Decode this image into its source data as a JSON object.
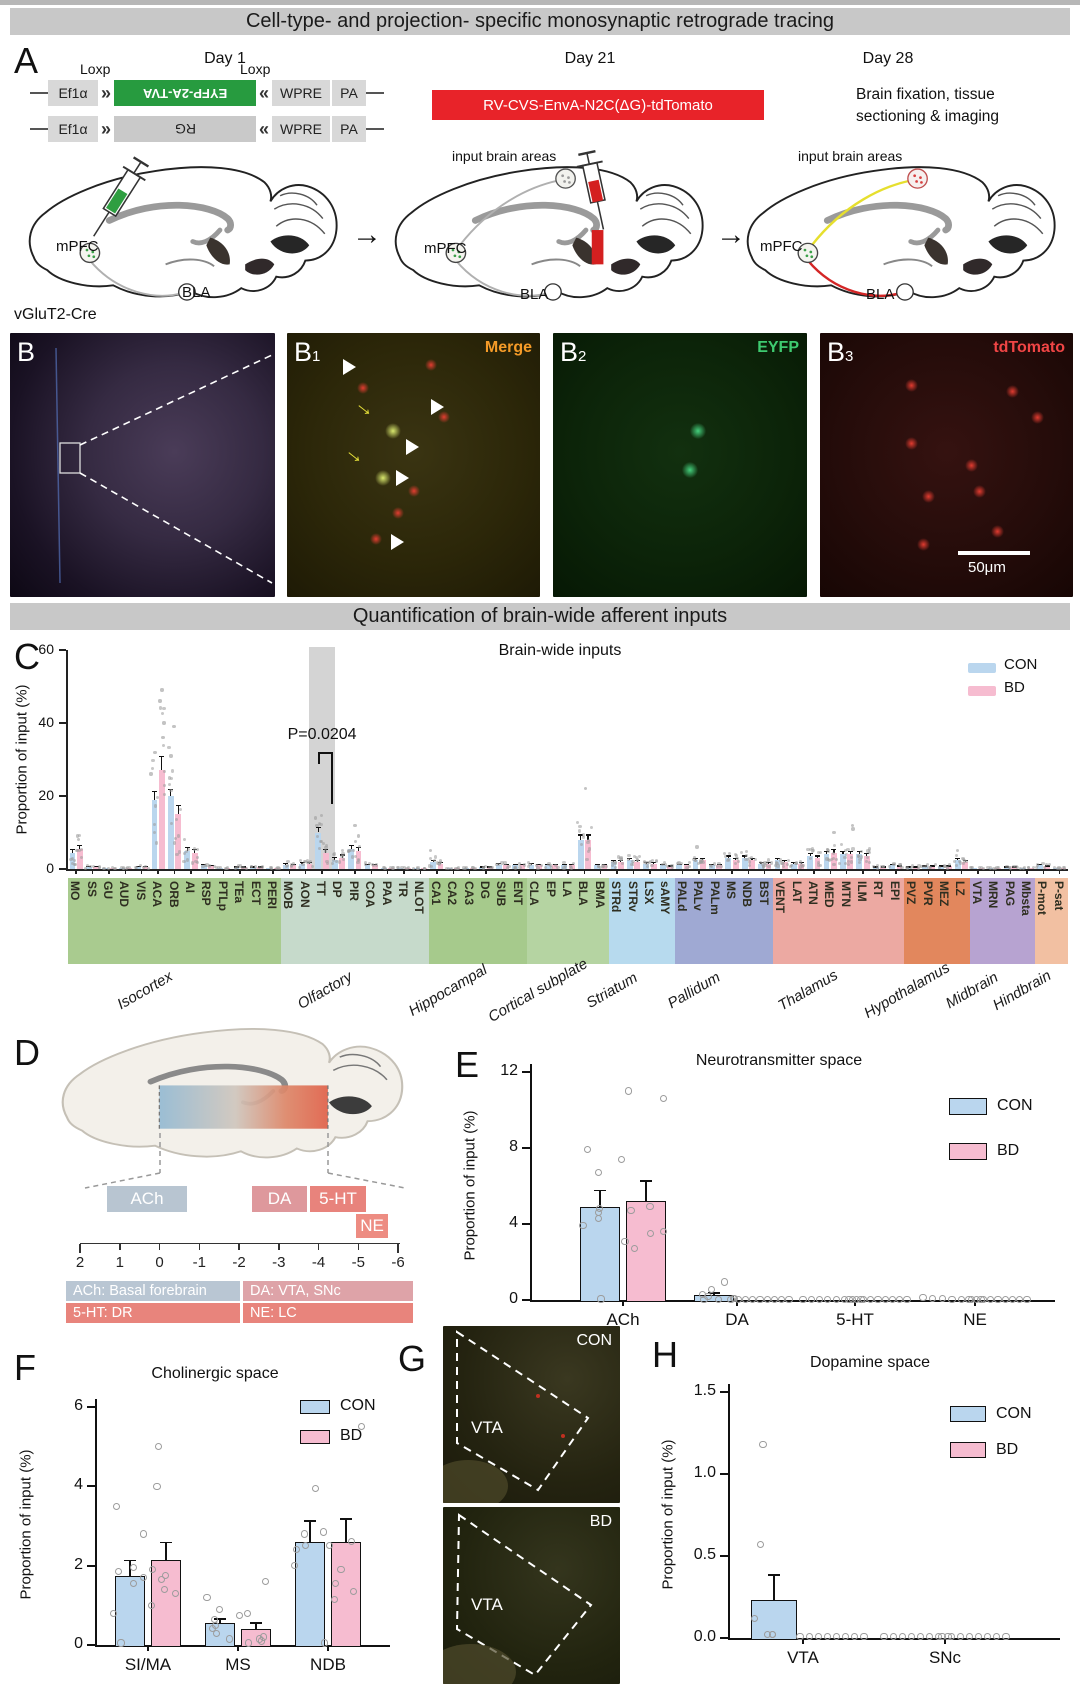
{
  "banners": {
    "top": "Cell-type- and projection- specific monosynaptic retrograde tracing",
    "mid": "Quantification of brain-wide afferent inputs"
  },
  "colors": {
    "con": "#bad6ee",
    "bd": "#f6bcd0",
    "banner_bg": "#c8c8c8",
    "construct_green": "#279b3f",
    "virus_red": "#e82329"
  },
  "panelA": {
    "letter": "A",
    "day1": "Day 1",
    "day21": "Day 21",
    "day28": "Day 28",
    "loxp1": "Loxp",
    "loxp2": "Loxp",
    "construct1": {
      "promoter": "Ef1α",
      "insert": "EYFP-2A-TVA",
      "wpre": "WPRE",
      "pa": "PA"
    },
    "construct2": {
      "promoter": "Ef1α",
      "insert": "RG",
      "wpre": "WPRE",
      "pa": "PA"
    },
    "virus_label": "RV-CVS-EnvA-N2C(ΔG)-tdTomato",
    "day28_text": "Brain fixation, tissue sectioning & imaging",
    "input_label_2": "input brain areas",
    "input_label_3": "input brain areas",
    "mpfc": "mPFC",
    "bla": "BLA",
    "cre_line": "vGluT2-Cre"
  },
  "panelB": {
    "letter": "B",
    "b1": {
      "letter": "B",
      "sub": "1",
      "tag": "Merge",
      "tag_color": "#f59b28"
    },
    "b2": {
      "letter": "B",
      "sub": "2",
      "tag": "EYFP",
      "tag_color": "#3ecb70"
    },
    "b3": {
      "letter": "B",
      "sub": "3",
      "tag": "tdTomato",
      "tag_color": "#f04545"
    },
    "scalebar": "50μm"
  },
  "panelD": {
    "letter": "D",
    "ach": "ACh",
    "da": "DA",
    "ht5": "5-HT",
    "ne": "NE",
    "ruler": [
      "2",
      "1",
      "0",
      "-1",
      "-2",
      "-3",
      "-4",
      "-5",
      "-6"
    ],
    "legend": [
      {
        "text": "ACh: Basal forebrain",
        "color": "#b9c6d3"
      },
      {
        "text": "DA: VTA, SNc",
        "color": "#dea3a8"
      },
      {
        "text": "5-HT: DR",
        "color": "#e8847c"
      },
      {
        "text": "NE: LC",
        "color": "#e8847c"
      }
    ]
  },
  "panelG": {
    "letter": "G",
    "top_tag": "CON",
    "bottom_tag": "BD",
    "region_top": "VTA",
    "region_bottom": "VTA"
  },
  "chart_data": [
    {
      "id": "brain-wide-inputs",
      "panel_letter": "C",
      "type": "bar",
      "title": "Brain-wide inputs",
      "ylabel": "Proportion of input (%)",
      "ylim": [
        0,
        60
      ],
      "yticks": [
        0,
        20,
        40,
        60
      ],
      "annotation": {
        "text": "P=0.0204",
        "region": "TT"
      },
      "groups": [
        {
          "name": "Isocortex",
          "color": "#a9cb8f",
          "regions": [
            "MO",
            "SS",
            "GU",
            "AUD",
            "VIS",
            "ACA",
            "ORB",
            "AI",
            "RSP",
            "PTLp",
            "TEa",
            "ECT",
            "PERI"
          ]
        },
        {
          "name": "Olfactory",
          "color": "#c6dacb",
          "regions": [
            "MOB",
            "AON",
            "TT",
            "DP",
            "PIR",
            "COA",
            "PAA",
            "TR",
            "NLOT"
          ]
        },
        {
          "name": "Hippocampal",
          "color": "#a6ca8c",
          "regions": [
            "CA1",
            "CA2",
            "CA3",
            "DG",
            "SUB",
            "ENT"
          ]
        },
        {
          "name": "Cortical subplate",
          "color": "#b5d4a2",
          "regions": [
            "CLA",
            "EP",
            "LA",
            "BLA",
            "BMA"
          ]
        },
        {
          "name": "Striatum",
          "color": "#b7daee",
          "regions": [
            "STRd",
            "STRv",
            "LSX",
            "sAMY"
          ]
        },
        {
          "name": "Pallidum",
          "color": "#9fa9d3",
          "regions": [
            "PALd",
            "PALv",
            "PALm",
            "MS",
            "NDB",
            "BST"
          ]
        },
        {
          "name": "Thalamus",
          "color": "#eca9a2",
          "regions": [
            "VENT",
            "LAT",
            "ATN",
            "MED",
            "MTN",
            "ILM",
            "RT",
            "EPI"
          ]
        },
        {
          "name": "Hypothalamus",
          "color": "#e2875d",
          "regions": [
            "PVZ",
            "PVR",
            "MEZ",
            "LZ"
          ]
        },
        {
          "name": "Midbrain",
          "color": "#b7a3d1",
          "regions": [
            "VTA",
            "MRN",
            "PAG",
            "Mbsta"
          ]
        },
        {
          "name": "Hindbrain",
          "color": "#f2c0a2",
          "regions": [
            "P-mot",
            "P-sat"
          ]
        }
      ],
      "series": [
        {
          "name": "CON",
          "color": "#bad6ee",
          "values": [
            4.5,
            0.6,
            0.2,
            0.3,
            0.6,
            19,
            20,
            5,
            1,
            0.3,
            0.5,
            0.5,
            0.3,
            1.2,
            1.5,
            10,
            2.5,
            5.5,
            1,
            0.3,
            0.3,
            0.2,
            2,
            0.2,
            0.3,
            0.5,
            1.2,
            1,
            1.2,
            1,
            1,
            8,
            1,
            2,
            2.5,
            1.5,
            1,
            1,
            2.5,
            1,
            3,
            3,
            1.5,
            2.5,
            1.5,
            3.5,
            4,
            4,
            4,
            0.5,
            1,
            0.5,
            0.8,
            0.8,
            2.5,
            0.3,
            0.3,
            0.5,
            0.3,
            1,
            0.3
          ],
          "errors": [
            1,
            0.2,
            0.1,
            0.1,
            0.2,
            2.5,
            2,
            1,
            0.3,
            0.1,
            0.2,
            0.2,
            0.1,
            0.4,
            0.4,
            1.5,
            0.8,
            1.2,
            0.3,
            0.1,
            0.1,
            0.1,
            0.5,
            0.1,
            0.1,
            0.2,
            0.4,
            0.3,
            0.4,
            0.3,
            0.3,
            1.5,
            0.3,
            0.5,
            0.6,
            0.4,
            0.3,
            0.3,
            0.6,
            0.3,
            0.7,
            0.7,
            0.4,
            0.6,
            0.4,
            0.8,
            1,
            1,
            1,
            0.2,
            0.3,
            0.2,
            0.2,
            0.2,
            0.6,
            0.1,
            0.1,
            0.2,
            0.1,
            0.3,
            0.1
          ]
        },
        {
          "name": "BD",
          "color": "#f6bcd0",
          "values": [
            5.5,
            0.6,
            0.2,
            0.3,
            0.6,
            27,
            15,
            4.5,
            0.8,
            0.3,
            0.5,
            0.5,
            0.3,
            1,
            1.5,
            4.5,
            3,
            5,
            1,
            0.3,
            0.3,
            0.2,
            1.5,
            0.2,
            0.3,
            0.5,
            1,
            1,
            1,
            1,
            1,
            8,
            1,
            2,
            2,
            1.5,
            0.8,
            1,
            2.5,
            1,
            2.5,
            2.5,
            1.5,
            2,
            1.5,
            3,
            4.5,
            4,
            3.5,
            0.5,
            0.8,
            0.5,
            0.8,
            0.8,
            2,
            0.3,
            0.3,
            0.5,
            0.3,
            0.8,
            0.3
          ],
          "errors": [
            1.2,
            0.2,
            0.1,
            0.1,
            0.2,
            4,
            2.5,
            1,
            0.3,
            0.1,
            0.2,
            0.2,
            0.1,
            0.3,
            0.4,
            1,
            1,
            1,
            0.3,
            0.1,
            0.1,
            0.1,
            0.4,
            0.1,
            0.1,
            0.2,
            0.3,
            0.3,
            0.3,
            0.3,
            0.3,
            1.5,
            0.3,
            0.5,
            0.5,
            0.4,
            0.2,
            0.3,
            0.6,
            0.3,
            0.6,
            0.6,
            0.4,
            0.5,
            0.4,
            0.7,
            1.1,
            1,
            0.9,
            0.2,
            0.2,
            0.2,
            0.2,
            0.2,
            0.5,
            0.1,
            0.1,
            0.2,
            0.1,
            0.2,
            0.1
          ]
        }
      ],
      "outlier_points": [
        {
          "region": "ACA",
          "series": "BD",
          "values": [
            49,
            46,
            40,
            36
          ]
        },
        {
          "region": "ACA",
          "series": "CON",
          "values": [
            32,
            26
          ]
        },
        {
          "region": "ORB",
          "series": "CON",
          "values": [
            39,
            31
          ]
        },
        {
          "region": "MO",
          "series": "BD",
          "values": [
            9,
            8
          ]
        },
        {
          "region": "TT",
          "series": "CON",
          "values": [
            14,
            12
          ]
        },
        {
          "region": "PIR",
          "series": "BD",
          "values": [
            12,
            9
          ]
        },
        {
          "region": "BLA",
          "series": "BD",
          "values": [
            22
          ]
        },
        {
          "region": "MED",
          "series": "BD",
          "values": [
            10
          ]
        },
        {
          "region": "MTN",
          "series": "BD",
          "values": [
            12,
            11
          ]
        },
        {
          "region": "LZ",
          "series": "CON",
          "values": [
            5
          ]
        },
        {
          "region": "CA1",
          "series": "CON",
          "values": [
            5
          ]
        },
        {
          "region": "PALv",
          "series": "CON",
          "values": [
            6
          ]
        }
      ],
      "legend": [
        "CON",
        "BD"
      ]
    },
    {
      "id": "neurotransmitter-space",
      "panel_letter": "E",
      "type": "bar",
      "title": "Neurotransmitter space",
      "ylabel": "Proportion of input (%)",
      "ylim": [
        0,
        12
      ],
      "yticks": [
        0,
        4,
        8,
        12
      ],
      "categories": [
        "ACh",
        "DA",
        "5-HT",
        "NE"
      ],
      "series": [
        {
          "name": "CON",
          "color": "#bad6ee",
          "values": [
            4.9,
            0.28,
            0.03,
            0.04
          ],
          "errors": [
            0.9,
            0.12,
            0.01,
            0.02
          ],
          "points": [
            [
              7.9,
              7.4,
              6.7,
              4.8,
              4.6,
              4.3,
              3.9,
              0.05
            ],
            [
              0.95,
              0.55,
              0.3,
              0.18,
              0.1,
              0.06,
              0.04,
              0.02
            ],
            [
              0.02,
              0.02,
              0.02,
              0.02,
              0.02,
              0.02,
              0.02,
              0.02
            ],
            [
              0.12,
              0.1,
              0.06,
              0.04,
              0.03,
              0.02,
              0.02
            ]
          ]
        },
        {
          "name": "BD",
          "color": "#f6bcd0",
          "values": [
            5.2,
            0.03,
            0.03,
            0.03
          ],
          "errors": [
            1.1,
            0.01,
            0.01,
            0.01
          ],
          "points": [
            [
              11.0,
              10.6,
              4.9,
              4.7,
              3.6,
              3.5,
              3.1,
              2.7
            ],
            [
              0.02,
              0.02,
              0.02,
              0.02,
              0.02,
              0.02,
              0.02,
              0.02,
              0.02
            ],
            [
              0.02,
              0.02,
              0.02,
              0.02,
              0.02,
              0.02,
              0.02,
              0.02,
              0.02
            ],
            [
              0.02,
              0.02,
              0.02,
              0.02,
              0.02,
              0.02,
              0.02,
              0.02,
              0.02
            ]
          ]
        }
      ],
      "legend": [
        "CON",
        "BD"
      ]
    },
    {
      "id": "cholinergic-space",
      "panel_letter": "F",
      "type": "bar",
      "title": "Cholinergic space",
      "ylabel": "Proportion of input (%)",
      "ylim": [
        0,
        6
      ],
      "yticks": [
        0,
        2,
        4,
        6
      ],
      "categories": [
        "SI/MA",
        "MS",
        "NDB"
      ],
      "series": [
        {
          "name": "CON",
          "color": "#bad6ee",
          "values": [
            1.75,
            0.55,
            2.6
          ],
          "errors": [
            0.4,
            0.12,
            0.55
          ],
          "points": [
            [
              3.5,
              2.8,
              1.95,
              1.85,
              1.7,
              1.55,
              0.8,
              0.05
            ],
            [
              1.2,
              0.9,
              0.65,
              0.5,
              0.42,
              0.3,
              0.15
            ],
            [
              3.95,
              2.85,
              2.8,
              2.5,
              2.4,
              2.0,
              0.05
            ]
          ]
        },
        {
          "name": "BD",
          "color": "#f6bcd0",
          "values": [
            2.15,
            0.4,
            2.6
          ],
          "errors": [
            0.45,
            0.18,
            0.6
          ],
          "points": [
            [
              5.0,
              4.0,
              1.9,
              1.75,
              1.65,
              1.4,
              1.3,
              1.0
            ],
            [
              1.6,
              0.8,
              0.75,
              0.2,
              0.15,
              0.1,
              0.05
            ],
            [
              5.5,
              2.6,
              2.5,
              1.9,
              1.55,
              1.35,
              1.15
            ]
          ]
        }
      ],
      "legend": [
        "CON",
        "BD"
      ]
    },
    {
      "id": "dopamine-space",
      "panel_letter": "H",
      "type": "bar",
      "title": "Dopamine space",
      "ylabel": "Proportion of input (%)",
      "ylim": [
        0,
        1.5
      ],
      "yticks": [
        0,
        0.5,
        1.0,
        1.5
      ],
      "ytick_labels": [
        "0.0",
        "0.5",
        "1.0",
        "1.5"
      ],
      "categories": [
        "VTA",
        "SNc"
      ],
      "series": [
        {
          "name": "CON",
          "color": "#bad6ee",
          "values": [
            0.23,
            0.005
          ],
          "errors": [
            0.16,
            0
          ],
          "points": [
            [
              1.18,
              0.57,
              0.12,
              0.02,
              0.02,
              0.02
            ],
            [
              0.01,
              0.01,
              0.01,
              0.01,
              0.01,
              0.01,
              0.01,
              0.01
            ]
          ]
        },
        {
          "name": "BD",
          "color": "#f6bcd0",
          "values": [
            0.005,
            0.005
          ],
          "errors": [
            0,
            0
          ],
          "points": [
            [
              0.01,
              0.01,
              0.01,
              0.01,
              0.01,
              0.01,
              0.01,
              0.01
            ],
            [
              0.01,
              0.01,
              0.01,
              0.01,
              0.01,
              0.01,
              0.01,
              0.01
            ]
          ]
        }
      ],
      "legend": [
        "CON",
        "BD"
      ]
    }
  ]
}
